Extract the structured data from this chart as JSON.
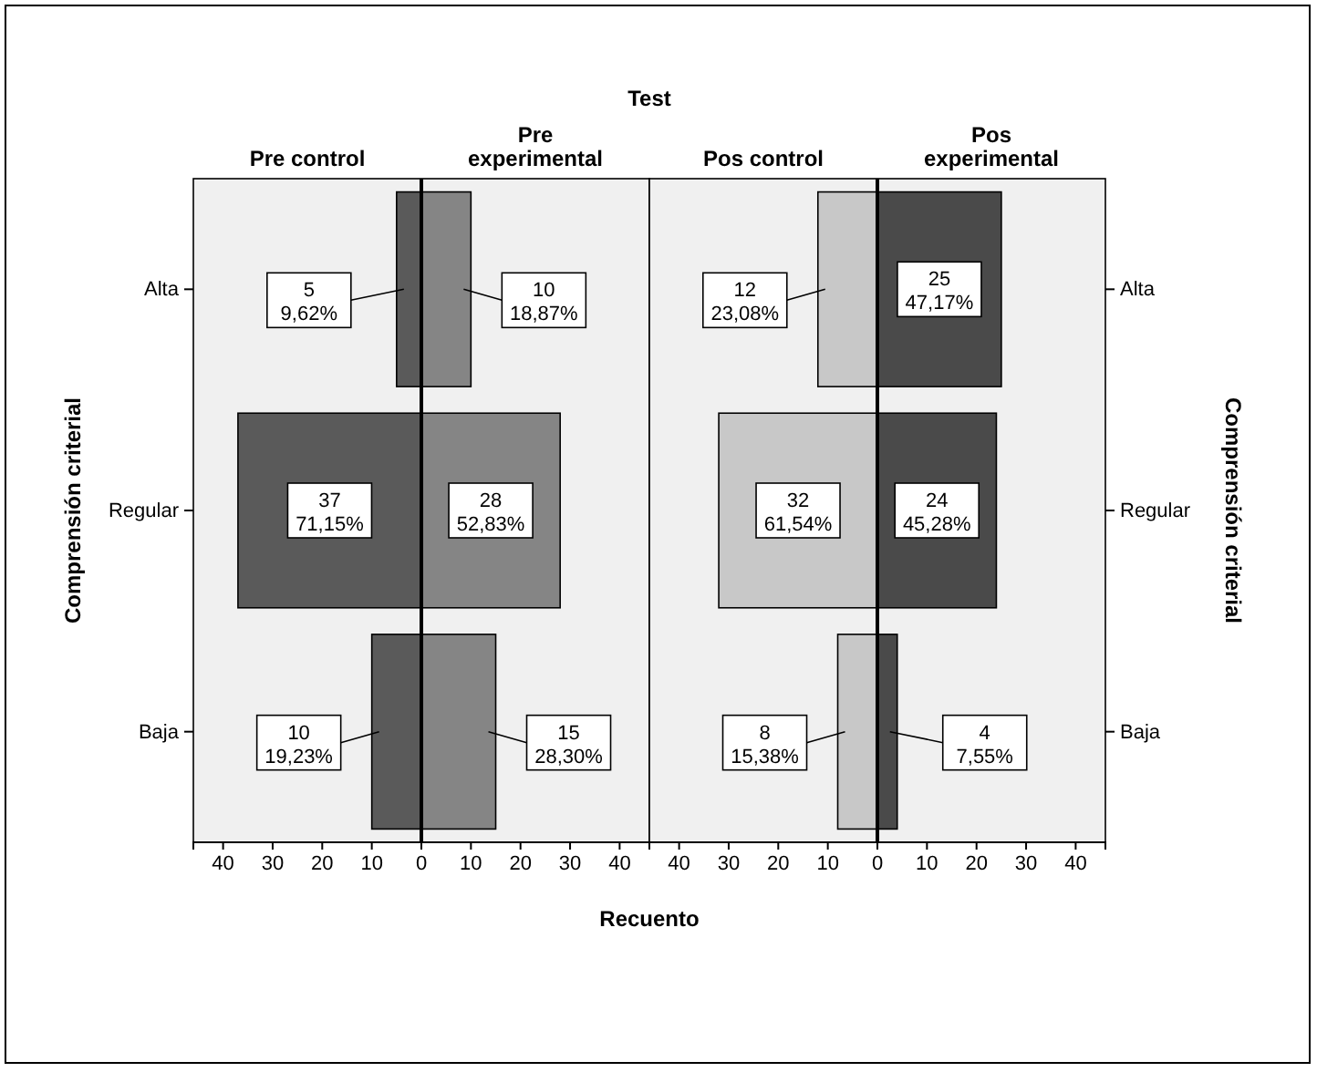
{
  "chart_data": [
    {
      "type": "bar",
      "orientation": "horizontal",
      "title": "Test",
      "ylabel": "Comprensión criterial",
      "categories": [
        "Alta",
        "Regular",
        "Baja"
      ],
      "xlim": [
        -46,
        46
      ],
      "xticks": [
        {
          "value": -40,
          "label": "40"
        },
        {
          "value": -30,
          "label": "30"
        },
        {
          "value": -20,
          "label": "20"
        },
        {
          "value": -10,
          "label": "10"
        },
        0,
        10,
        20,
        30,
        40
      ],
      "series": [
        {
          "name": "Pre control",
          "color": "#5a5a5a",
          "base": [
            -5,
            -37,
            -10
          ],
          "values": [
            5,
            37,
            10
          ],
          "value_labels": [
            "5\n9,62%",
            "37\n71,15%",
            "10\n19,23%"
          ]
        },
        {
          "name": "Pre experimental",
          "color": "#858585",
          "values": [
            10,
            28,
            15
          ],
          "value_labels": [
            "10\n18,87%",
            "28\n52,83%",
            "15\n28,30%"
          ]
        }
      ]
    },
    {
      "type": "bar",
      "orientation": "horizontal",
      "xlabel": "Recuento",
      "y2label": "Comprensión criterial",
      "categories": [
        "Alta",
        "Regular",
        "Baja"
      ],
      "xlim": [
        -46,
        46
      ],
      "xticks": [
        {
          "value": -40,
          "label": "40"
        },
        {
          "value": -30,
          "label": "30"
        },
        {
          "value": -20,
          "label": "20"
        },
        {
          "value": -10,
          "label": "10"
        },
        0,
        10,
        20,
        30,
        40
      ],
      "series": [
        {
          "name": "Pos control",
          "color": "#c8c8c8",
          "base": [
            -12,
            -32,
            -8
          ],
          "values": [
            12,
            32,
            8
          ],
          "value_labels": [
            "12\n23,08%",
            "32\n61,54%",
            "8\n15,38%"
          ]
        },
        {
          "name": "Pos experimental",
          "color": "#4a4a4a",
          "values": [
            25,
            24,
            4
          ],
          "value_labels": [
            "25\n47,17%",
            "24\n45,28%",
            "4\n7,55%"
          ]
        }
      ]
    }
  ]
}
